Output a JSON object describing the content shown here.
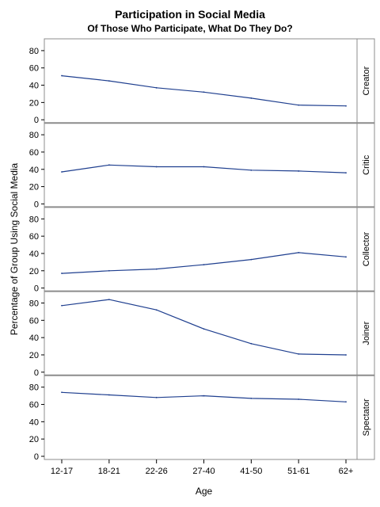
{
  "chart_data": {
    "type": "line",
    "title": "Participation in Social Media",
    "subtitle": "Of Those Who Participate, What Do They Do?",
    "xlabel": "Age",
    "ylabel": "Percentage of Group Using Social Media",
    "categories": [
      "12-17",
      "18-21",
      "22-26",
      "27-40",
      "41-50",
      "51-61",
      "62+"
    ],
    "ylim": [
      0,
      90
    ],
    "yticks": [
      0,
      20,
      40,
      60,
      80
    ],
    "line_color": "#1f3f8f",
    "series": [
      {
        "name": "Creator",
        "values": [
          51,
          45,
          37,
          32,
          25,
          17,
          16
        ]
      },
      {
        "name": "Critic",
        "values": [
          37,
          45,
          43,
          43,
          39,
          38,
          36
        ]
      },
      {
        "name": "Collector",
        "values": [
          17,
          20,
          22,
          27,
          33,
          41,
          36
        ]
      },
      {
        "name": "Joiner",
        "values": [
          77,
          84,
          72,
          50,
          33,
          21,
          20
        ]
      },
      {
        "name": "Spectator",
        "values": [
          74,
          71,
          68,
          70,
          67,
          66,
          63
        ]
      }
    ]
  }
}
